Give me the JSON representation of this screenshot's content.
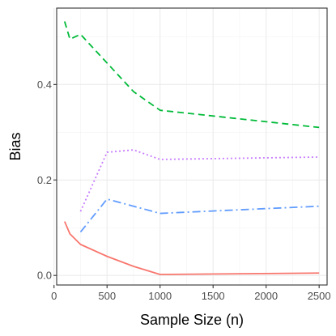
{
  "chart_data": {
    "type": "line",
    "title": "",
    "xlabel": "Sample Size (n)",
    "ylabel": "Bias",
    "xlim": [
      25,
      2575
    ],
    "ylim": [
      -0.02,
      0.56
    ],
    "x_ticks": [
      0,
      500,
      1000,
      1500,
      2000,
      2500
    ],
    "x_tick_labels": [
      "0",
      "500",
      "1000",
      "1500",
      "2000",
      "2500"
    ],
    "y_ticks": [
      0.0,
      0.2,
      0.4
    ],
    "y_tick_labels": [
      "0.0",
      "0.2",
      "0.4"
    ],
    "grid": true,
    "legend": "none",
    "series": [
      {
        "color": "#F8766D",
        "dash": "solid",
        "x": [
          100,
          150,
          250,
          500,
          750,
          1000,
          2500
        ],
        "y": [
          0.113,
          0.087,
          0.065,
          0.04,
          0.019,
          0.002,
          0.005
        ]
      },
      {
        "color": "#619CFF",
        "dash": "dashdot",
        "x": [
          250,
          500,
          1000,
          2500
        ],
        "y": [
          0.091,
          0.16,
          0.13,
          0.145
        ]
      },
      {
        "color": "#C77CFF",
        "dash": "dotted",
        "x": [
          250,
          500,
          750,
          1000,
          2500
        ],
        "y": [
          0.134,
          0.258,
          0.263,
          0.243,
          0.248
        ]
      },
      {
        "color": "#00BA38",
        "dash": "dashed",
        "x": [
          100,
          150,
          250,
          500,
          750,
          1000,
          2500
        ],
        "y": [
          0.532,
          0.495,
          0.505,
          0.445,
          0.385,
          0.346,
          0.31
        ]
      }
    ]
  }
}
